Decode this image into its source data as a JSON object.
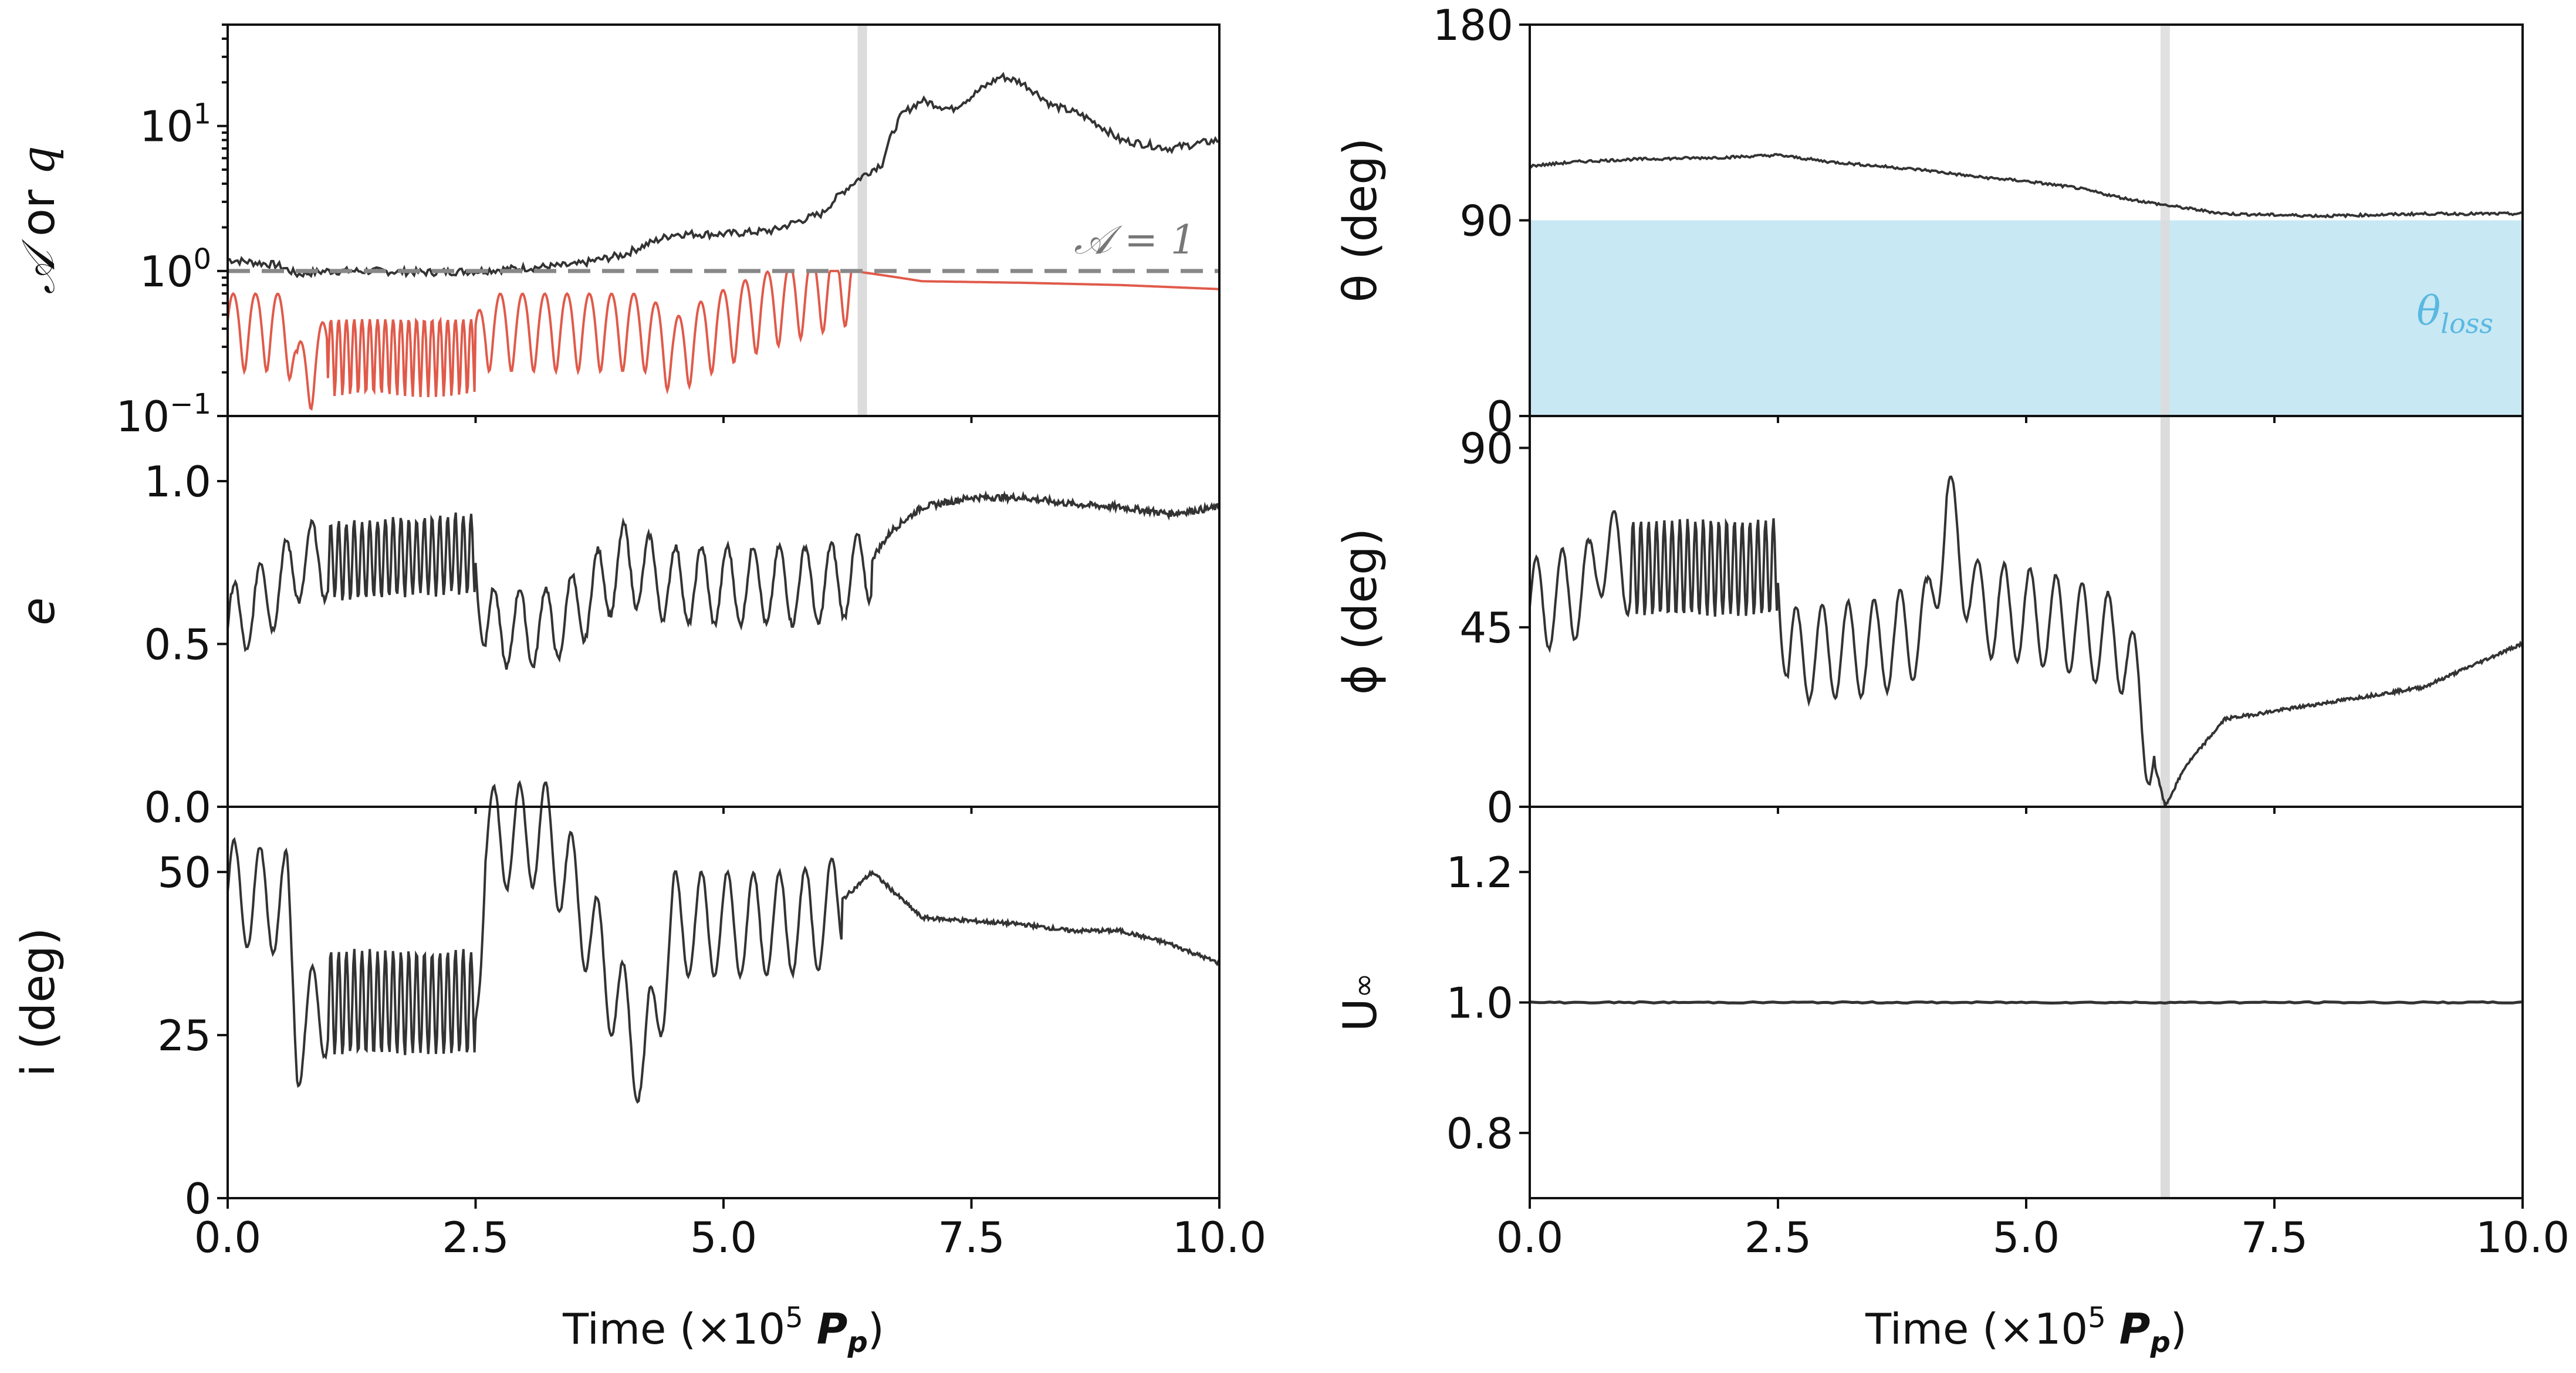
{
  "colors": {
    "black_series": "#333333",
    "red_series": "#e05a4a",
    "loss_fill": "#c8e8f4",
    "loss_text": "#5ab8e0",
    "ref_line": "#888888",
    "marker": "#dcdcdc"
  },
  "x_axis": {
    "label_prefix": "Time (×10",
    "label_exp": "5",
    "label_var": "P",
    "label_sub": "p",
    "label_suffix": ")",
    "range": [
      0,
      10
    ],
    "ticks": [
      0,
      2.5,
      5,
      7.5,
      10
    ],
    "tick_labels": [
      "0.0",
      "2.5",
      "5.0",
      "7.5",
      "10.0"
    ]
  },
  "marker_time": 6.4,
  "panels": {
    "A": {
      "ylabel_a": "𝒜",
      "ylabel_mid": " or ",
      "ylabel_q": "q",
      "scale": "log",
      "ylim": [
        0.1,
        50
      ],
      "ticks": [
        {
          "value": 0.1,
          "base": "10",
          "exp": "−1"
        },
        {
          "value": 1,
          "base": "10",
          "exp": "0"
        },
        {
          "value": 10,
          "base": "10",
          "exp": "1"
        }
      ],
      "ref_value": 1,
      "ref_label": "𝒜 = 1"
    },
    "e": {
      "ylabel": "e",
      "ylim": [
        0,
        1.2
      ],
      "ticks": [
        0,
        0.5,
        1.0
      ],
      "tick_labels": [
        "0.0",
        "0.5",
        "1.0"
      ]
    },
    "i": {
      "ylabel": "i (deg)",
      "ylim": [
        0,
        60
      ],
      "ticks": [
        0,
        25,
        50
      ],
      "tick_labels": [
        "0",
        "25",
        "50"
      ]
    },
    "theta": {
      "ylabel": "θ (deg)",
      "ylim": [
        0,
        180
      ],
      "ticks": [
        0,
        90,
        180
      ],
      "tick_labels": [
        "0",
        "90",
        "180"
      ],
      "loss_upper": 90,
      "loss_label": "loss"
    },
    "phi": {
      "ylabel": "ϕ (deg)",
      "ylim": [
        0,
        98
      ],
      "ticks": [
        0,
        45,
        90
      ],
      "tick_labels": [
        "0",
        "45",
        "90"
      ]
    },
    "U": {
      "ylabel": "U",
      "ylabel_sub": "∞",
      "ylim": [
        0.7,
        1.3
      ],
      "ticks": [
        0.8,
        1.0,
        1.2
      ],
      "tick_labels": [
        "0.8",
        "1.0",
        "1.2"
      ]
    }
  },
  "chart_data": [
    {
      "type": "line",
      "title": "",
      "xlabel": "Time (×10^5 P_p)",
      "ylabel": "𝒜 or q",
      "yscale": "log",
      "ylim": [
        0.1,
        50
      ],
      "series": [
        {
          "name": "𝒜",
          "x": [
            0,
            0.5,
            0.7,
            1.0,
            1.5,
            2.0,
            2.5,
            3.0,
            3.5,
            4.0,
            4.5,
            5.0,
            5.5,
            6.0,
            6.4,
            6.6,
            6.8,
            7.0,
            7.3,
            7.5,
            7.8,
            8.0,
            8.3,
            8.6,
            9.0,
            9.5,
            10.0
          ],
          "y": [
            1.2,
            1.1,
            0.95,
            1.0,
            1.0,
            0.98,
            1.0,
            1.05,
            1.1,
            1.3,
            1.8,
            1.8,
            1.9,
            2.5,
            4.5,
            5.5,
            12,
            15,
            13,
            16,
            22,
            20,
            14,
            12,
            8,
            7,
            8
          ]
        },
        {
          "name": "q",
          "x": [
            0,
            0.6,
            0.7,
            1.0,
            2.5,
            2.6,
            4.2,
            4.5,
            6.4,
            7.0,
            8.0,
            9.0,
            10.0
          ],
          "y": [
            0.45,
            0.45,
            0.2,
            0.3,
            0.3,
            0.45,
            0.45,
            0.3,
            0.98,
            0.85,
            0.83,
            0.8,
            0.75
          ]
        }
      ]
    },
    {
      "type": "line",
      "ylabel": "e",
      "ylim": [
        0,
        1.2
      ],
      "series": [
        {
          "name": "e",
          "x": [
            0,
            0.6,
            0.7,
            2.5,
            2.6,
            3.2,
            3.5,
            4.0,
            4.5,
            5.0,
            5.5,
            6.0,
            6.4,
            6.7,
            7.0,
            7.5,
            8.0,
            8.5,
            9.0,
            9.5,
            10.0
          ],
          "y": [
            0.55,
            0.7,
            0.75,
            0.78,
            0.55,
            0.55,
            0.6,
            0.75,
            0.68,
            0.68,
            0.68,
            0.68,
            0.72,
            0.85,
            0.92,
            0.95,
            0.95,
            0.93,
            0.92,
            0.9,
            0.92
          ]
        }
      ]
    },
    {
      "type": "line",
      "ylabel": "i (deg)",
      "ylim": [
        0,
        60
      ],
      "series": [
        {
          "name": "i",
          "x": [
            0,
            0.6,
            0.7,
            1.0,
            2.5,
            2.6,
            3.2,
            3.5,
            4.2,
            4.5,
            5.0,
            5.5,
            6.0,
            6.5,
            7.0,
            8.0,
            8.5,
            9.0,
            9.5,
            10.0
          ],
          "y": [
            47,
            45,
            25,
            30,
            30,
            55,
            56,
            47,
            20,
            42,
            42,
            42,
            43,
            50,
            43,
            42,
            41,
            41,
            39,
            36
          ]
        }
      ]
    },
    {
      "type": "line",
      "ylabel": "θ (deg)",
      "ylim": [
        0,
        180
      ],
      "series": [
        {
          "name": "θ",
          "x": [
            0,
            0.5,
            1.0,
            2.0,
            2.5,
            3.0,
            4.0,
            4.5,
            5.0,
            5.5,
            6.0,
            6.4,
            7.0,
            8.0,
            9.0,
            10.0
          ],
          "y": [
            115,
            117,
            118,
            119,
            120,
            117,
            113,
            110,
            108,
            105,
            100,
            97,
            93,
            92,
            93,
            93
          ]
        }
      ],
      "shaded_region": {
        "label": "θ_loss",
        "y_range": [
          0,
          90
        ]
      }
    },
    {
      "type": "line",
      "ylabel": "ϕ (deg)",
      "ylim": [
        0,
        98
      ],
      "series": [
        {
          "name": "ϕ",
          "x": [
            0,
            0.6,
            0.7,
            1.0,
            2.5,
            2.6,
            3.5,
            4.0,
            4.2,
            4.5,
            5.0,
            5.5,
            6.0,
            6.4,
            6.6,
            7.0,
            8.0,
            9.0,
            10.0
          ],
          "y": [
            50,
            55,
            65,
            60,
            60,
            38,
            40,
            45,
            75,
            50,
            48,
            45,
            40,
            0,
            10,
            22,
            26,
            30,
            41
          ]
        }
      ]
    },
    {
      "type": "line",
      "ylabel": "U∞",
      "ylim": [
        0.7,
        1.3
      ],
      "series": [
        {
          "name": "U∞",
          "x": [
            0,
            10
          ],
          "y": [
            1.0,
            1.0
          ]
        }
      ]
    }
  ]
}
